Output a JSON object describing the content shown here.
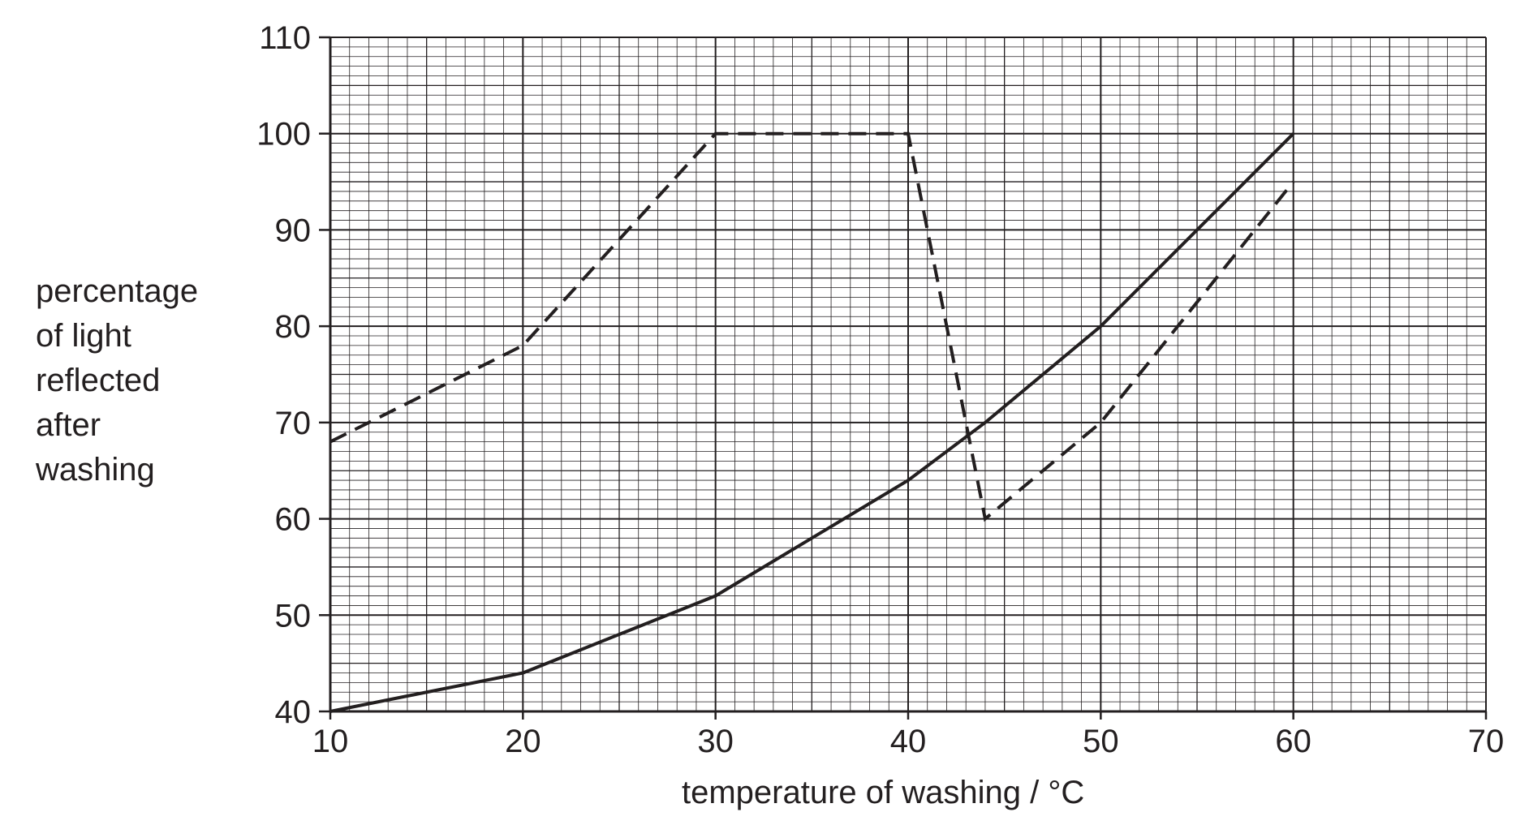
{
  "chart_data": {
    "type": "line",
    "title": "",
    "xlabel": "temperature of washing / °C",
    "ylabel_lines": [
      "percentage",
      "of light",
      "reflected",
      "after",
      "washing"
    ],
    "xlim": [
      10,
      70
    ],
    "ylim": [
      40,
      110
    ],
    "x_ticks": [
      10,
      20,
      30,
      40,
      50,
      60,
      70
    ],
    "y_ticks": [
      40,
      50,
      60,
      70,
      80,
      90,
      100,
      110
    ],
    "grid": true,
    "legend": "none",
    "colors": {
      "line": "#231f20",
      "grid": "#231f20"
    },
    "series": [
      {
        "style": "solid",
        "x": [
          10,
          20,
          30,
          40,
          44,
          50,
          60
        ],
        "y": [
          40,
          44,
          52,
          64,
          70,
          80,
          100
        ]
      },
      {
        "style": "dashed",
        "x": [
          10,
          20,
          30,
          40,
          44,
          50,
          60
        ],
        "y": [
          68,
          78,
          100,
          100,
          60,
          70,
          95
        ]
      }
    ]
  }
}
